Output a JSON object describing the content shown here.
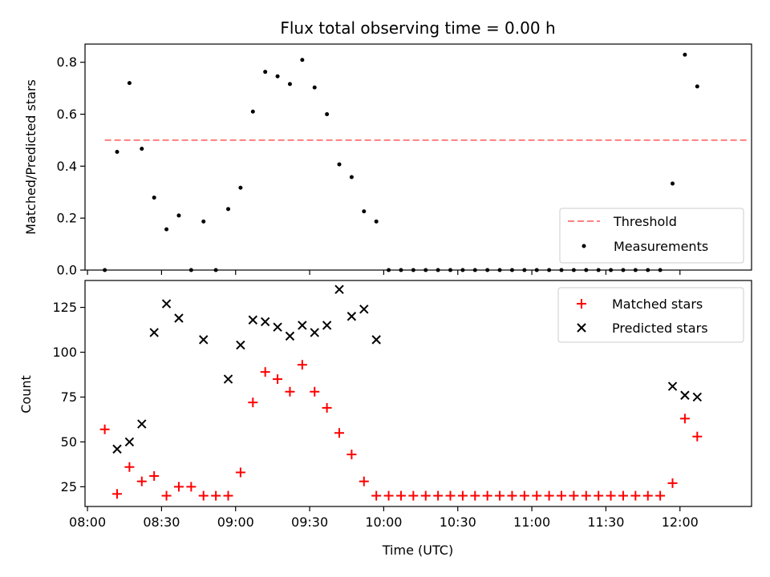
{
  "chart_data": [
    {
      "type": "scatter",
      "title": "Flux total observing time = 0.00 h",
      "xlabel": "",
      "ylabel": "Matched/Predicted stars",
      "xlim": [
        "07:59",
        "12:29"
      ],
      "ylim": [
        0,
        0.87
      ],
      "yticks": [
        0.0,
        0.2,
        0.4,
        0.6,
        0.8
      ],
      "ytick_labels": [
        "0.0",
        "0.2",
        "0.4",
        "0.6",
        "0.8"
      ],
      "grid": false,
      "legend_position": "lower-right",
      "series": [
        {
          "name": "Threshold",
          "kind": "dashed-line",
          "color": "#ff7f7f",
          "x": [
            "08:07",
            "12:27"
          ],
          "y": [
            0.5,
            0.5
          ]
        },
        {
          "name": "Measurements",
          "kind": "dot",
          "color": "#000000",
          "x": [
            "08:07",
            "08:12",
            "08:17",
            "08:22",
            "08:27",
            "08:32",
            "08:37",
            "08:42",
            "08:47",
            "08:52",
            "08:57",
            "09:02",
            "09:07",
            "09:12",
            "09:17",
            "09:22",
            "09:27",
            "09:32",
            "09:37",
            "09:42",
            "09:47",
            "09:52",
            "09:57",
            "10:02",
            "10:07",
            "10:12",
            "10:17",
            "10:22",
            "10:27",
            "10:32",
            "10:37",
            "10:42",
            "10:47",
            "10:52",
            "10:57",
            "11:02",
            "11:07",
            "11:12",
            "11:17",
            "11:22",
            "11:27",
            "11:32",
            "11:37",
            "11:42",
            "11:47",
            "11:52",
            "11:57",
            "12:02",
            "12:07"
          ],
          "y": [
            0.0,
            0.455,
            0.72,
            0.467,
            0.279,
            0.157,
            0.21,
            0.0,
            0.187,
            0.0,
            0.235,
            0.317,
            0.61,
            0.763,
            0.746,
            0.716,
            0.809,
            0.703,
            0.6,
            0.407,
            0.358,
            0.226,
            0.187,
            0.0,
            0.0,
            0.0,
            0.0,
            0.0,
            0.0,
            0.0,
            0.0,
            0.0,
            0.0,
            0.0,
            0.0,
            0.0,
            0.0,
            0.0,
            0.0,
            0.0,
            0.0,
            0.0,
            0.0,
            0.0,
            0.0,
            0.0,
            0.333,
            0.829,
            0.707
          ]
        }
      ]
    },
    {
      "type": "scatter",
      "title": "",
      "xlabel": "Time (UTC)",
      "ylabel": "Count",
      "xlim": [
        "07:59",
        "12:29"
      ],
      "ylim": [
        14,
        140
      ],
      "xticks": [
        "08:00",
        "08:30",
        "09:00",
        "09:30",
        "10:00",
        "10:30",
        "11:00",
        "11:30",
        "12:00"
      ],
      "xtick_labels": [
        "08:00",
        "08:30",
        "09:00",
        "09:30",
        "10:00",
        "10:30",
        "11:00",
        "11:30",
        "12:00"
      ],
      "yticks": [
        25,
        50,
        75,
        100,
        125
      ],
      "ytick_labels": [
        "25",
        "50",
        "75",
        "100",
        "125"
      ],
      "grid": false,
      "legend_position": "upper-right",
      "series": [
        {
          "name": "Matched stars",
          "kind": "plus",
          "color": "#ff0000",
          "x": [
            "08:07",
            "08:12",
            "08:17",
            "08:22",
            "08:27",
            "08:32",
            "08:37",
            "08:42",
            "08:47",
            "08:52",
            "08:57",
            "09:02",
            "09:07",
            "09:12",
            "09:17",
            "09:22",
            "09:27",
            "09:32",
            "09:37",
            "09:42",
            "09:47",
            "09:52",
            "09:57",
            "10:02",
            "10:07",
            "10:12",
            "10:17",
            "10:22",
            "10:27",
            "10:32",
            "10:37",
            "10:42",
            "10:47",
            "10:52",
            "10:57",
            "11:02",
            "11:07",
            "11:12",
            "11:17",
            "11:22",
            "11:27",
            "11:32",
            "11:37",
            "11:42",
            "11:47",
            "11:52",
            "11:57",
            "12:02",
            "12:07"
          ],
          "y": [
            57,
            21,
            36,
            28,
            31,
            20,
            25,
            25,
            20,
            20,
            20,
            33,
            72,
            89,
            85,
            78,
            93,
            78,
            69,
            55,
            43,
            28,
            20,
            20,
            20,
            20,
            20,
            20,
            20,
            20,
            20,
            20,
            20,
            20,
            20,
            20,
            20,
            20,
            20,
            20,
            20,
            20,
            20,
            20,
            20,
            20,
            27,
            63,
            53
          ]
        },
        {
          "name": "Predicted stars",
          "kind": "cross",
          "color": "#000000",
          "x": [
            "08:12",
            "08:17",
            "08:22",
            "08:27",
            "08:32",
            "08:37",
            "08:47",
            "08:57",
            "09:02",
            "09:07",
            "09:12",
            "09:17",
            "09:22",
            "09:27",
            "09:32",
            "09:37",
            "09:42",
            "09:47",
            "09:52",
            "09:57",
            "11:57",
            "12:02",
            "12:07"
          ],
          "y": [
            46,
            50,
            60,
            111,
            127,
            119,
            107,
            85,
            104,
            118,
            117,
            114,
            109,
            115,
            111,
            115,
            135,
            120,
            124,
            107,
            81,
            76,
            75
          ]
        }
      ]
    }
  ]
}
